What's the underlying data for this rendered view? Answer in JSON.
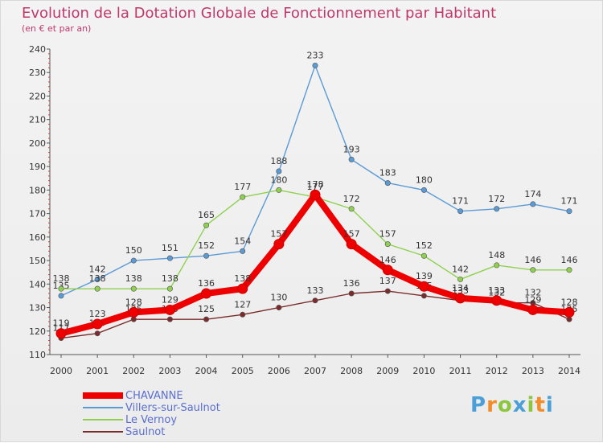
{
  "chart_data": {
    "type": "line",
    "title": "Evolution de la Dotation Globale de Fonctionnement par Habitant",
    "subtitle": "(en € et par an)",
    "xlabel": "",
    "ylabel": "",
    "x": [
      "2000",
      "2001",
      "2002",
      "2003",
      "2004",
      "2005",
      "2006",
      "2007",
      "2008",
      "2009",
      "2010",
      "2011",
      "2012",
      "2013",
      "2014"
    ],
    "ylim": [
      110,
      240
    ],
    "yticks": [
      110,
      120,
      130,
      140,
      150,
      160,
      170,
      180,
      190,
      200,
      210,
      220,
      230,
      240
    ],
    "grid": false,
    "legend_position": "bottom-left",
    "series": [
      {
        "name": "Villers-sur-Saulnot",
        "color": "#5b9bd5",
        "values": [
          135,
          142,
          150,
          151,
          152,
          154,
          188,
          233,
          193,
          183,
          180,
          171,
          172,
          174,
          171
        ]
      },
      {
        "name": "Le Vernoy",
        "color": "#8fd14f",
        "values": [
          138,
          138,
          138,
          138,
          165,
          177,
          180,
          177,
          172,
          157,
          152,
          142,
          148,
          146,
          146
        ]
      },
      {
        "name": "Saulnot",
        "color": "#7a2b2b",
        "values": [
          117,
          119,
          125,
          125,
          125,
          127,
          130,
          133,
          136,
          137,
          135,
          133,
          132,
          132,
          125
        ]
      },
      {
        "name": "CHAVANNE",
        "color": "#ee0000",
        "values": [
          119,
          123,
          128,
          129,
          136,
          138,
          157,
          178,
          157,
          146,
          139,
          134,
          133,
          129,
          128
        ]
      }
    ]
  },
  "legend": [
    {
      "name": "CHAVANNE",
      "color": "#ee0000",
      "thickness": 8
    },
    {
      "name": "Villers-sur-Saulnot",
      "color": "#5b9bd5",
      "thickness": 2
    },
    {
      "name": "Le Vernoy",
      "color": "#8fd14f",
      "thickness": 2
    },
    {
      "name": "Saulnot",
      "color": "#7a2b2b",
      "thickness": 2
    }
  ],
  "brand": {
    "letters": [
      "P",
      "r",
      "o",
      "x",
      "i",
      "t",
      "i"
    ],
    "colors": [
      "#4a9fd8",
      "#f28c28",
      "#8cc63f",
      "#4a9fd8",
      "#8cc63f",
      "#f28c28",
      "#4a9fd8"
    ]
  }
}
